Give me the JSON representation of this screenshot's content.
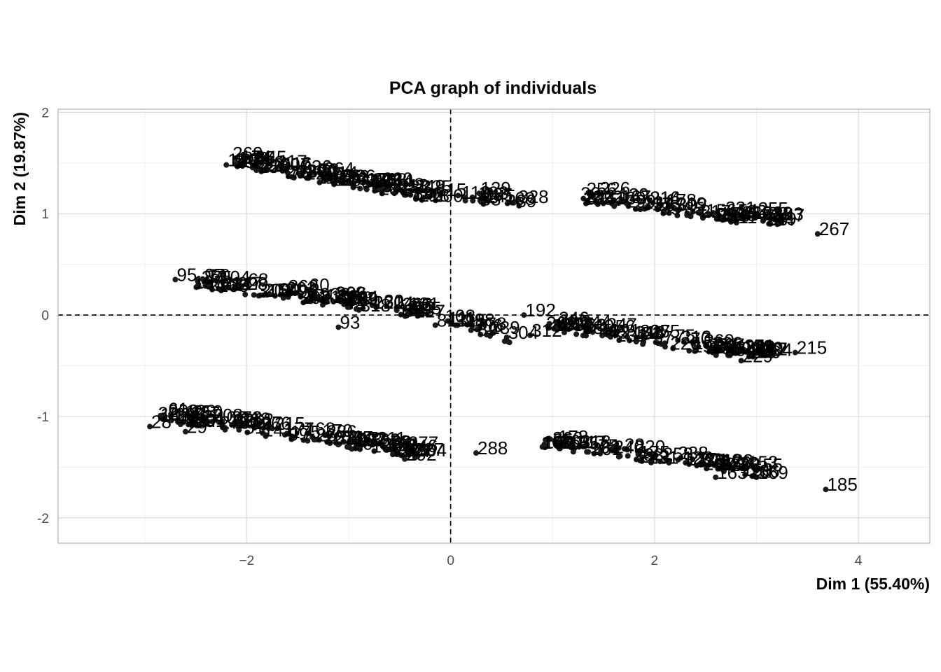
{
  "chart_data": {
    "type": "scatter",
    "title": "PCA graph of individuals",
    "xlabel": "Dim 1 (55.40%)",
    "ylabel": "Dim 2 (19.87%)",
    "xlim": [
      -3.85,
      4.7
    ],
    "ylim": [
      -2.25,
      2.03
    ],
    "x_ticks": [
      -2,
      0,
      2,
      4
    ],
    "y_ticks": [
      -2,
      -1,
      0,
      1,
      2
    ],
    "grid": true,
    "reference_lines": {
      "x": 0,
      "y": 0
    },
    "marker_color": "#1a1a1a",
    "clusters": [
      {
        "x0": -2.1,
        "x1": -0.1,
        "y0": 1.5,
        "y1": 1.15,
        "n": 110,
        "jitter": 0.05
      },
      {
        "x0": 0.05,
        "x1": 0.7,
        "y0": 1.15,
        "y1": 1.1,
        "n": 18,
        "jitter": 0.04
      },
      {
        "x0": 1.3,
        "x1": 3.25,
        "y0": 1.15,
        "y1": 0.9,
        "n": 80,
        "jitter": 0.05
      },
      {
        "x0": -2.5,
        "x1": -0.25,
        "y0": 0.32,
        "y1": 0.0,
        "n": 95,
        "jitter": 0.05
      },
      {
        "x0": -0.1,
        "x1": 0.75,
        "y0": -0.07,
        "y1": -0.28,
        "n": 14,
        "jitter": 0.04
      },
      {
        "x0": 0.95,
        "x1": 3.1,
        "y0": -0.1,
        "y1": -0.42,
        "n": 95,
        "jitter": 0.05
      },
      {
        "x0": -2.85,
        "x1": -0.2,
        "y0": -1.0,
        "y1": -1.38,
        "n": 120,
        "jitter": 0.05
      },
      {
        "x0": 0.85,
        "x1": 3.0,
        "y0": -1.25,
        "y1": -1.55,
        "n": 75,
        "jitter": 0.05
      }
    ],
    "points": [
      {
        "x": 3.6,
        "y": 0.8,
        "label": "267"
      },
      {
        "x": 3.68,
        "y": -1.72,
        "label": "185"
      },
      {
        "x": 3.38,
        "y": -0.37,
        "label": "215"
      },
      {
        "x": 3.0,
        "y": -1.6,
        "label": "169"
      },
      {
        "x": 2.85,
        "y": -0.45,
        "label": "229"
      },
      {
        "x": 0.72,
        "y": 0.0,
        "label": "192"
      },
      {
        "x": 0.25,
        "y": -1.36,
        "label": "288"
      },
      {
        "x": -0.45,
        "y": -1.42,
        "label": "292"
      },
      {
        "x": -0.15,
        "y": -0.1,
        "label": "81"
      },
      {
        "x": 0.2,
        "y": -0.15,
        "label": "306"
      },
      {
        "x": 0.55,
        "y": -0.22,
        "label": "304"
      },
      {
        "x": 0.78,
        "y": -0.2,
        "label": "312"
      },
      {
        "x": 0.05,
        "y": -0.1,
        "label": "315"
      },
      {
        "x": 0.28,
        "y": 1.2,
        "label": "129"
      },
      {
        "x": 0.65,
        "y": 1.12,
        "label": "328"
      },
      {
        "x": 1.55,
        "y": -0.2,
        "label": "191"
      },
      {
        "x": -2.7,
        "y": 0.35,
        "label": "95"
      },
      {
        "x": -0.4,
        "y": 0.05,
        "label": "95"
      },
      {
        "x": -0.9,
        "y": 0.05,
        "label": "318"
      },
      {
        "x": -2.95,
        "y": -1.1,
        "label": "28"
      },
      {
        "x": -2.6,
        "y": -1.15,
        "label": "29"
      },
      {
        "x": -2.1,
        "y": 1.5,
        "label": "142"
      },
      {
        "x": -2.2,
        "y": 1.48,
        "label": "140"
      },
      {
        "x": -0.3,
        "y": 1.22,
        "label": "325"
      },
      {
        "x": 1.45,
        "y": 1.2,
        "label": "226"
      },
      {
        "x": 2.2,
        "y": 1.05,
        "label": "219"
      },
      {
        "x": 3.0,
        "y": 1.0,
        "label": "255"
      },
      {
        "x": 3.15,
        "y": 0.95,
        "label": "263"
      },
      {
        "x": 2.6,
        "y": -1.6,
        "label": "163"
      },
      {
        "x": 2.9,
        "y": -1.5,
        "label": "153"
      },
      {
        "x": 0.9,
        "y": -1.3,
        "label": "168"
      },
      {
        "x": 1.35,
        "y": -1.35,
        "label": "182"
      },
      {
        "x": -1.1,
        "y": -0.12,
        "label": "93"
      },
      {
        "x": -0.35,
        "y": -1.38,
        "label": "304"
      },
      {
        "x": -2.0,
        "y": 0.3,
        "label": "68"
      },
      {
        "x": -1.4,
        "y": 0.25,
        "label": "60"
      }
    ]
  }
}
